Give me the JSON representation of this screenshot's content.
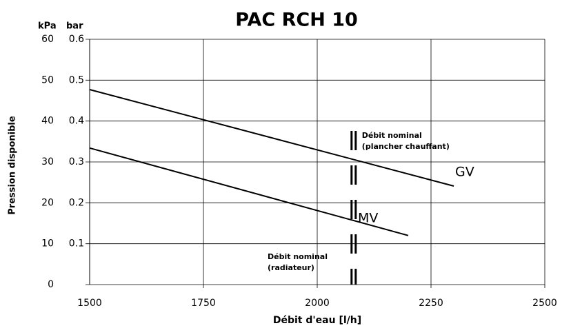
{
  "chart_data": {
    "type": "line",
    "title": "PAC RCH 10",
    "xlabel": "Débit d'eau [l/h]",
    "ylabel": "Pression disponible",
    "yunit": "kPa",
    "y2unit": "bar",
    "xlim": [
      1500,
      2500
    ],
    "xticks": [
      1500,
      1750,
      2000,
      2250,
      2500
    ],
    "ylim": [
      0,
      60
    ],
    "yticks": [
      0,
      10,
      20,
      30,
      40,
      50,
      60
    ],
    "y2lim": [
      0,
      0.6
    ],
    "y2ticks": [
      0.1,
      0.2,
      0.3,
      0.4,
      0.5,
      0.6
    ],
    "grid": true,
    "series": [
      {
        "name": "GV",
        "color": "#000000",
        "x": [
          1500,
          2300
        ],
        "values": [
          47.7,
          24.1
        ]
      },
      {
        "name": "MV",
        "color": "#000000",
        "x": [
          1500,
          2200
        ],
        "values": [
          33.4,
          12
        ]
      }
    ],
    "nominal_flow_x": 2080,
    "annotations": [
      {
        "lines": [
          "Débit nominal",
          "(plancher chauffant)"
        ]
      },
      {
        "lines": [
          "Débit nominal",
          "(radiateur)"
        ]
      }
    ]
  }
}
